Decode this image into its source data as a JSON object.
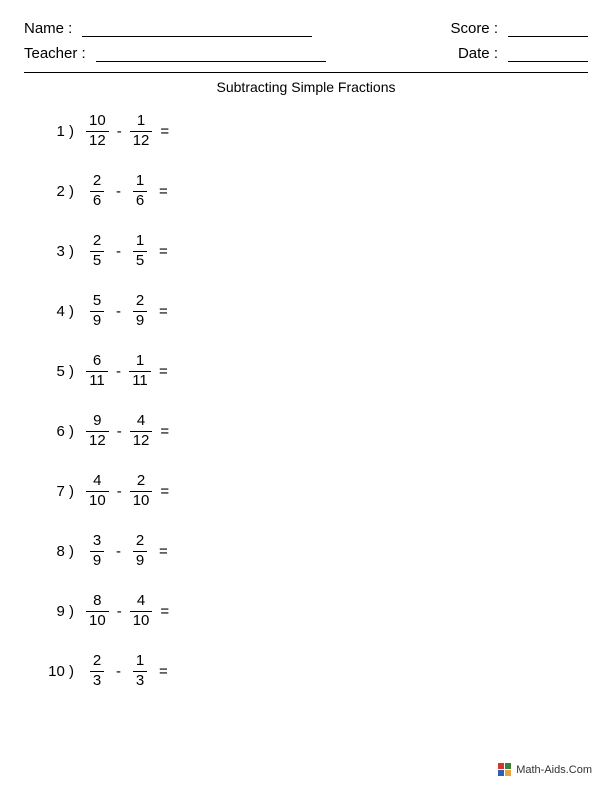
{
  "header": {
    "name_label": "Name :",
    "teacher_label": "Teacher :",
    "score_label": "Score :",
    "date_label": "Date :"
  },
  "title": "Subtracting Simple Fractions",
  "operator": "-",
  "equals": "=",
  "problems": [
    {
      "n": "1 )",
      "a_num": "10",
      "a_den": "12",
      "b_num": "1",
      "b_den": "12"
    },
    {
      "n": "2 )",
      "a_num": "2",
      "a_den": "6",
      "b_num": "1",
      "b_den": "6"
    },
    {
      "n": "3 )",
      "a_num": "2",
      "a_den": "5",
      "b_num": "1",
      "b_den": "5"
    },
    {
      "n": "4 )",
      "a_num": "5",
      "a_den": "9",
      "b_num": "2",
      "b_den": "9"
    },
    {
      "n": "5 )",
      "a_num": "6",
      "a_den": "11",
      "b_num": "1",
      "b_den": "11"
    },
    {
      "n": "6 )",
      "a_num": "9",
      "a_den": "12",
      "b_num": "4",
      "b_den": "12"
    },
    {
      "n": "7 )",
      "a_num": "4",
      "a_den": "10",
      "b_num": "2",
      "b_den": "10"
    },
    {
      "n": "8 )",
      "a_num": "3",
      "a_den": "9",
      "b_num": "2",
      "b_den": "9"
    },
    {
      "n": "9 )",
      "a_num": "8",
      "a_den": "10",
      "b_num": "4",
      "b_den": "10"
    },
    {
      "n": "10 )",
      "a_num": "2",
      "a_den": "3",
      "b_num": "1",
      "b_den": "3"
    }
  ],
  "footer": {
    "text": "Math-Aids.Com",
    "icon_colors": [
      "#d9342b",
      "#3a7f3a",
      "#2e5fb0",
      "#e8a33d"
    ]
  },
  "style": {
    "background_color": "#ffffff",
    "text_color": "#000000",
    "line_color": "#000000",
    "body_fontsize": 15,
    "title_fontsize": 14,
    "footer_fontsize": 11
  }
}
